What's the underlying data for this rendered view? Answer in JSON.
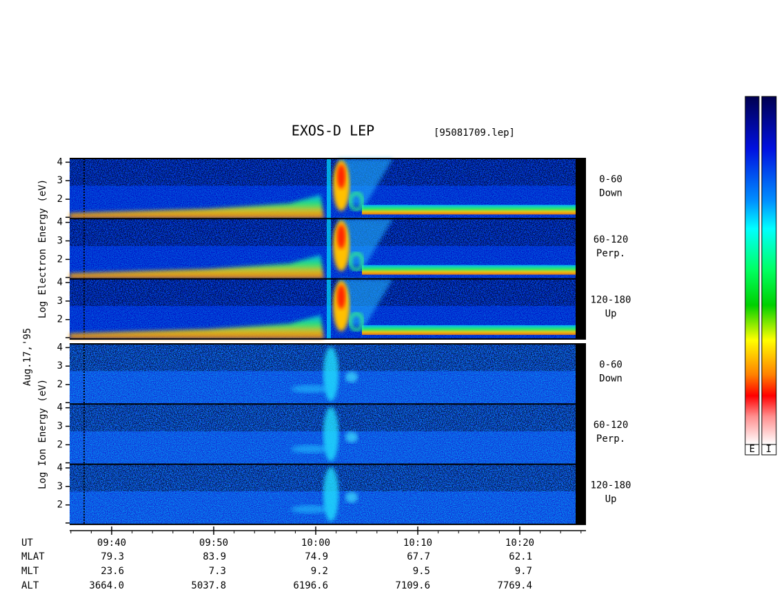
{
  "title": "EXOS-D LEP",
  "file": "[95081709.lep]",
  "date": "Aug.17,'95",
  "energy_axis": {
    "ylim": [
      0.95,
      4.2
    ],
    "yticks": [
      2,
      3,
      4
    ]
  },
  "groups": [
    {
      "ylabel": "Log  Electron  Energy (eV)",
      "panels": [
        {
          "angle": "0-60",
          "direction": "Down"
        },
        {
          "angle": "60-120",
          "direction": "Perp."
        },
        {
          "angle": "120-180",
          "direction": "Up"
        }
      ]
    },
    {
      "ylabel": "Log  Ion  Energy (eV)",
      "panels": [
        {
          "angle": "0-60",
          "direction": "Down"
        },
        {
          "angle": "60-120",
          "direction": "Perp."
        },
        {
          "angle": "120-180",
          "direction": "Up"
        }
      ]
    }
  ],
  "ephemeris": {
    "row_labels": [
      "UT",
      "MLAT",
      "MLT",
      "ALT"
    ],
    "columns": [
      [
        "09:40",
        "79.3",
        "23.6",
        "3664.0"
      ],
      [
        "09:50",
        "83.9",
        "7.3",
        "5037.8"
      ],
      [
        "10:00",
        "74.9",
        "9.2",
        "6196.6"
      ],
      [
        "10:10",
        "67.7",
        "9.5",
        "7109.6"
      ],
      [
        "10:20",
        "62.1",
        "9.7",
        "7769.4"
      ]
    ]
  },
  "colorbar_labels": [
    "E",
    "I"
  ]
}
